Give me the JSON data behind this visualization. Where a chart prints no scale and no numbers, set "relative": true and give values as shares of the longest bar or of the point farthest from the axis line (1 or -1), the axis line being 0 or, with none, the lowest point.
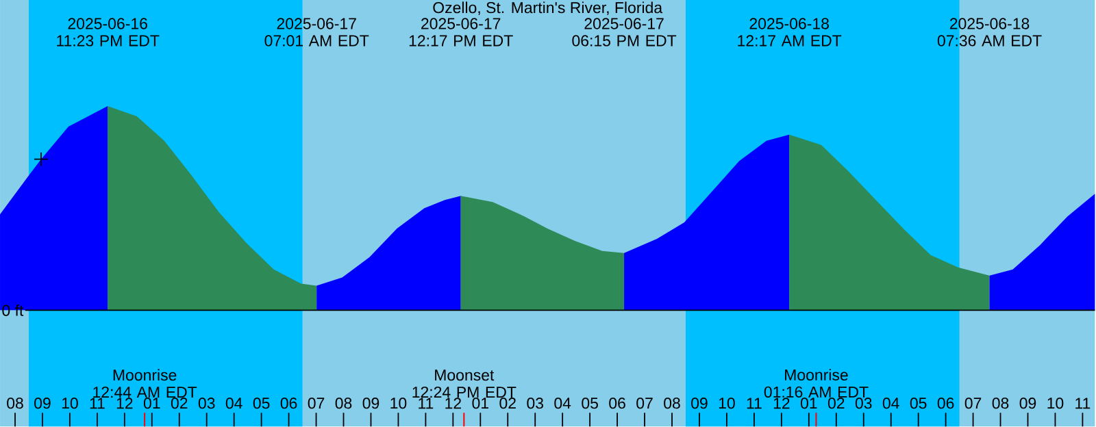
{
  "chart_data": {
    "type": "area",
    "title": "Ozello, St. Martin's River, Florida",
    "relative": true,
    "xlim": [
      "2025-06-16T19:27",
      "2025-06-18T11:27"
    ],
    "xticks": [
      {
        "value": "2025-06-16T20:00",
        "label": "08"
      },
      {
        "value": "2025-06-16T21:00",
        "label": "09"
      },
      {
        "value": "2025-06-16T22:00",
        "label": "10"
      },
      {
        "value": "2025-06-16T23:00",
        "label": "11"
      },
      {
        "value": "2025-06-17T00:00",
        "label": "12"
      },
      {
        "value": "2025-06-17T01:00",
        "label": "01"
      },
      {
        "value": "2025-06-17T02:00",
        "label": "02"
      },
      {
        "value": "2025-06-17T03:00",
        "label": "03"
      },
      {
        "value": "2025-06-17T04:00",
        "label": "04"
      },
      {
        "value": "2025-06-17T05:00",
        "label": "05"
      },
      {
        "value": "2025-06-17T06:00",
        "label": "06"
      },
      {
        "value": "2025-06-17T07:00",
        "label": "07"
      },
      {
        "value": "2025-06-17T08:00",
        "label": "08"
      },
      {
        "value": "2025-06-17T09:00",
        "label": "09"
      },
      {
        "value": "2025-06-17T10:00",
        "label": "10"
      },
      {
        "value": "2025-06-17T11:00",
        "label": "11"
      },
      {
        "value": "2025-06-17T12:00",
        "label": "12"
      },
      {
        "value": "2025-06-17T13:00",
        "label": "01"
      },
      {
        "value": "2025-06-17T14:00",
        "label": "02"
      },
      {
        "value": "2025-06-17T15:00",
        "label": "03"
      },
      {
        "value": "2025-06-17T16:00",
        "label": "04"
      },
      {
        "value": "2025-06-17T17:00",
        "label": "05"
      },
      {
        "value": "2025-06-17T18:00",
        "label": "06"
      },
      {
        "value": "2025-06-17T19:00",
        "label": "07"
      },
      {
        "value": "2025-06-17T20:00",
        "label": "08"
      },
      {
        "value": "2025-06-17T21:00",
        "label": "09"
      },
      {
        "value": "2025-06-17T22:00",
        "label": "10"
      },
      {
        "value": "2025-06-17T23:00",
        "label": "11"
      },
      {
        "value": "2025-06-18T00:00",
        "label": "12"
      },
      {
        "value": "2025-06-18T01:00",
        "label": "01"
      },
      {
        "value": "2025-06-18T02:00",
        "label": "02"
      },
      {
        "value": "2025-06-18T03:00",
        "label": "03"
      },
      {
        "value": "2025-06-18T04:00",
        "label": "04"
      },
      {
        "value": "2025-06-18T05:00",
        "label": "05"
      },
      {
        "value": "2025-06-18T06:00",
        "label": "06"
      },
      {
        "value": "2025-06-18T07:00",
        "label": "07"
      },
      {
        "value": "2025-06-18T08:00",
        "label": "08"
      },
      {
        "value": "2025-06-18T09:00",
        "label": "09"
      },
      {
        "value": "2025-06-18T10:00",
        "label": "10"
      },
      {
        "value": "2025-06-18T11:00",
        "label": "11"
      }
    ],
    "series": [
      {
        "color": "#0000ff",
        "x": [
          "2025-06-16T19:27",
          "2025-06-16T20:30",
          "2025-06-16T20:57",
          "2025-06-16T21:57",
          "2025-06-16T23:23"
        ],
        "values": [
          0.47,
          0.66,
          0.74,
          0.9,
          1.0
        ]
      },
      {
        "color": "#2e8b57",
        "x": [
          "2025-06-16T23:23",
          "2025-06-17T00:27",
          "2025-06-17T01:27",
          "2025-06-17T02:27",
          "2025-06-17T03:27",
          "2025-06-17T04:27",
          "2025-06-17T05:27",
          "2025-06-17T06:27",
          "2025-06-17T07:01"
        ],
        "values": [
          1.0,
          0.95,
          0.83,
          0.66,
          0.48,
          0.33,
          0.2,
          0.13,
          0.12
        ]
      },
      {
        "color": "#0000ff",
        "x": [
          "2025-06-17T07:01",
          "2025-06-17T07:57",
          "2025-06-17T08:57",
          "2025-06-17T09:57",
          "2025-06-17T10:57",
          "2025-06-17T11:42",
          "2025-06-17T12:17"
        ],
        "values": [
          0.12,
          0.16,
          0.26,
          0.4,
          0.5,
          0.54,
          0.56
        ]
      },
      {
        "color": "#2e8b57",
        "x": [
          "2025-06-17T12:17",
          "2025-06-17T13:27",
          "2025-06-17T14:27",
          "2025-06-17T15:27",
          "2025-06-17T16:27",
          "2025-06-17T17:27",
          "2025-06-17T18:15"
        ],
        "values": [
          0.56,
          0.53,
          0.47,
          0.4,
          0.34,
          0.29,
          0.28
        ]
      },
      {
        "color": "#0000ff",
        "x": [
          "2025-06-17T18:15",
          "2025-06-17T19:27",
          "2025-06-17T20:27",
          "2025-06-17T21:27",
          "2025-06-17T22:27",
          "2025-06-17T23:27",
          "2025-06-18T00:17"
        ],
        "values": [
          0.28,
          0.35,
          0.43,
          0.58,
          0.73,
          0.83,
          0.86
        ]
      },
      {
        "color": "#2e8b57",
        "x": [
          "2025-06-18T00:17",
          "2025-06-18T01:27",
          "2025-06-18T02:27",
          "2025-06-18T03:27",
          "2025-06-18T04:27",
          "2025-06-18T05:27",
          "2025-06-18T06:27",
          "2025-06-18T07:36"
        ],
        "values": [
          0.86,
          0.81,
          0.68,
          0.54,
          0.4,
          0.27,
          0.21,
          0.17
        ]
      },
      {
        "color": "#0000ff",
        "x": [
          "2025-06-18T07:36",
          "2025-06-18T08:27",
          "2025-06-18T09:27",
          "2025-06-18T10:27",
          "2025-06-18T11:27"
        ],
        "values": [
          0.17,
          0.2,
          0.32,
          0.46,
          0.57
        ]
      },
      {
        "type": "scatter",
        "color": "#000000",
        "marker": "cross",
        "x": [
          "2025-06-16T20:57"
        ],
        "values": [
          0.74
        ]
      }
    ],
    "bands": [
      {
        "axis": "x",
        "from": "2025-06-16T20:30",
        "to": "2025-06-17T06:30",
        "color": "#00bfff"
      },
      {
        "axis": "x",
        "from": "2025-06-17T20:30",
        "to": "2025-06-18T06:30",
        "color": "#00bfff"
      }
    ],
    "ref_lines": [
      {
        "axis": "y",
        "value": 0,
        "label": "0 ft",
        "color": "#000000"
      },
      {
        "axis": "x",
        "value": "2025-06-17T00:44",
        "label": "Moonrise 12:44 AM EDT",
        "color": "#ff0000"
      },
      {
        "axis": "x",
        "value": "2025-06-17T12:24",
        "label": "Moonset 12:24 PM EDT",
        "color": "#ff0000"
      },
      {
        "axis": "x",
        "value": "2025-06-18T01:16",
        "label": "Moonrise 01:16 AM EDT",
        "color": "#ff0000"
      }
    ],
    "annotations": [
      "2025-06-16 11:23 PM EDT",
      "2025-06-17 07:01 AM EDT",
      "2025-06-17 12:17 PM EDT",
      "2025-06-17 06:15 PM EDT",
      "2025-06-18 12:17 AM EDT",
      "2025-06-18 07:36 AM EDT"
    ]
  }
}
